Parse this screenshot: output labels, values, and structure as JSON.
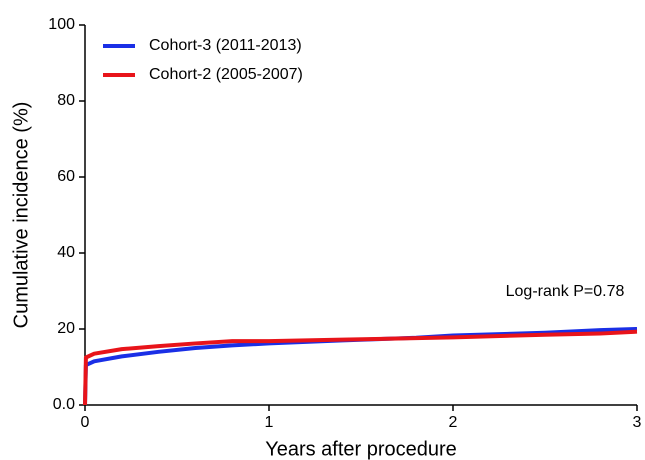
{
  "chart_data": {
    "type": "line",
    "xlabel": "Years after procedure",
    "ylabel": "Cumulative incidence (%)",
    "annotation": "Log-rank P=0.78",
    "x": [
      0,
      0.005,
      0.05,
      0.2,
      0.4,
      0.6,
      0.8,
      1,
      1.4,
      1.8,
      2,
      2.5,
      2.8,
      3
    ],
    "series": [
      {
        "name": "Cohort-3 (2011-2013)",
        "color": "#1a2fe6",
        "values": [
          0,
          10.5,
          11.5,
          12.8,
          14,
          15,
          15.7,
          16.2,
          17,
          17.7,
          18.3,
          19,
          19.7,
          20
        ]
      },
      {
        "name": "Cohort-2 (2005-2007)",
        "color": "#e8141a",
        "values": [
          0,
          12.5,
          13.5,
          14.7,
          15.5,
          16.2,
          16.8,
          16.8,
          17.2,
          17.6,
          17.8,
          18.5,
          18.8,
          19.3
        ]
      }
    ],
    "xlim": [
      0,
      3
    ],
    "xticks": [
      0,
      1,
      2,
      3
    ],
    "ylim": [
      0,
      100
    ],
    "yticks": [
      {
        "value": 0,
        "label": "0.0"
      },
      20,
      40,
      60,
      80,
      100
    ]
  }
}
